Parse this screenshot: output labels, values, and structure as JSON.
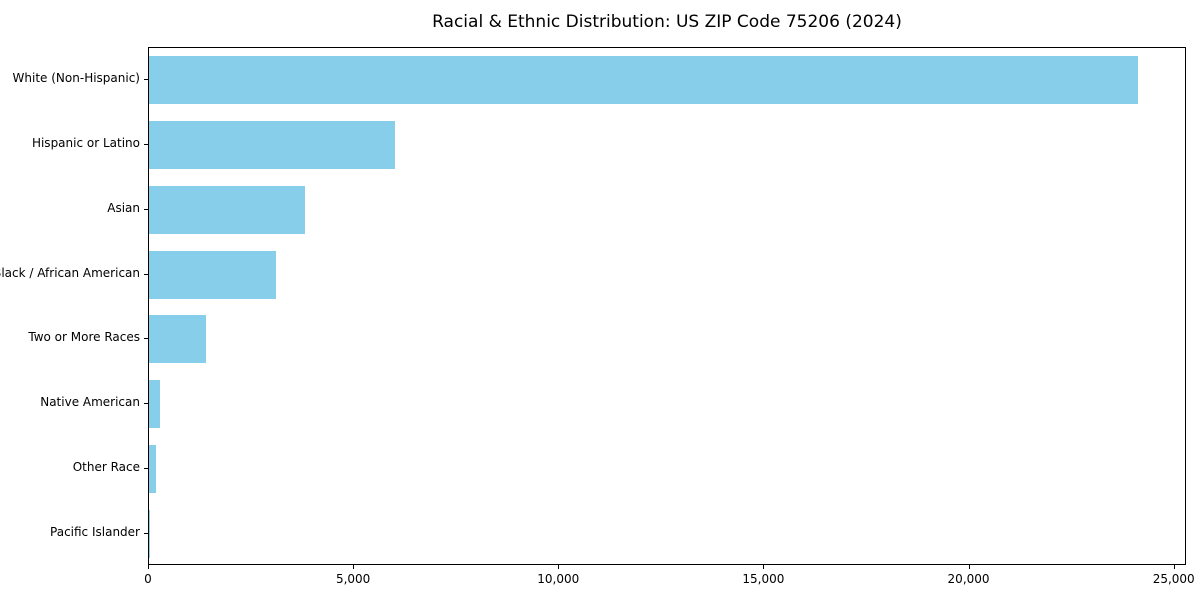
{
  "chart_data": {
    "type": "bar",
    "orientation": "horizontal",
    "title": "Racial & Ethnic Distribution: US ZIP Code 75206 (2024)",
    "categories": [
      "White (Non-Hispanic)",
      "Hispanic or Latino",
      "Asian",
      "Black / African American",
      "Two or More Races",
      "Native American",
      "Other Race",
      "Pacific Islander"
    ],
    "values": [
      24100,
      6000,
      3800,
      3100,
      1400,
      270,
      170,
      15
    ],
    "bar_color": "#87CEEB",
    "xlabel": "",
    "ylabel": "",
    "xlim": [
      0,
      25300
    ],
    "x_ticks": [
      {
        "value": 0,
        "label": "0"
      },
      {
        "value": 5000,
        "label": "5,000"
      },
      {
        "value": 10000,
        "label": "10,000"
      },
      {
        "value": 15000,
        "label": "15,000"
      },
      {
        "value": 20000,
        "label": "20,000"
      },
      {
        "value": 25000,
        "label": "25,000"
      }
    ],
    "grid": false,
    "legend": "none"
  }
}
